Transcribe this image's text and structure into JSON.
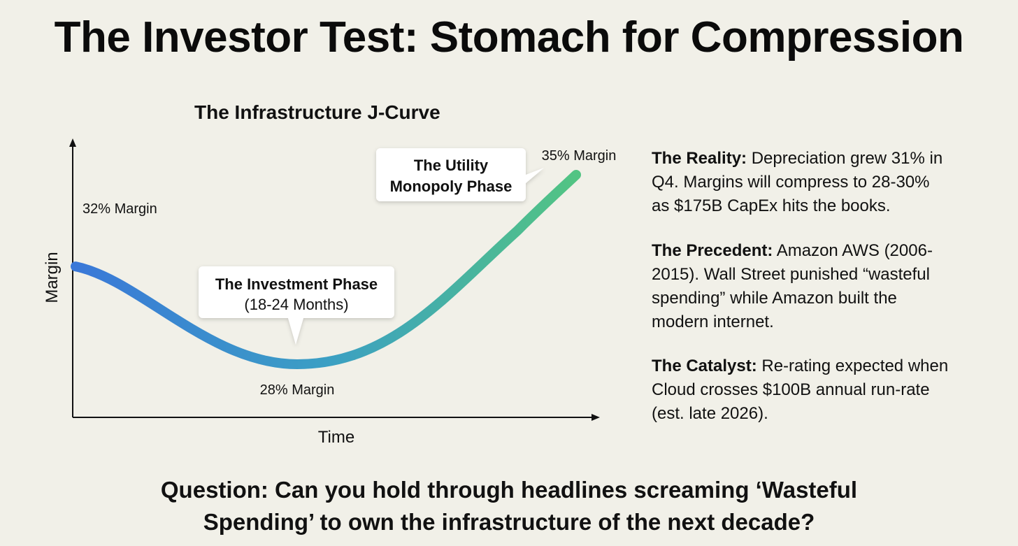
{
  "title": "The Investor Test: Stomach for Compression",
  "chart_data": {
    "type": "line",
    "title": "The Infrastructure J-Curve",
    "xlabel": "Time",
    "ylabel": "Margin",
    "series": [
      {
        "y": [
          32,
          28,
          35
        ]
      }
    ],
    "annotations": [
      {
        "label": "32% Margin"
      },
      {
        "label": "28% Margin"
      },
      {
        "label": "35% Margin"
      }
    ],
    "callouts": [
      {
        "lines": [
          "The Investment Phase",
          "(18-24 Months)"
        ]
      },
      {
        "lines": [
          "The Utility",
          "Monopoly Phase"
        ]
      }
    ],
    "colors": {
      "start": "#3a78d8",
      "mid": "#3b9fc4",
      "end": "#52c483"
    }
  },
  "side": [
    {
      "heading": "The Reality:",
      "lines": [
        "Depreciation grew 31% in",
        "Q4. Margins will compress to 28-30%",
        "as $175B CapEx hits the books."
      ]
    },
    {
      "heading": "The Precedent:",
      "lines": [
        "Amazon AWS (2006-",
        "2015). Wall Street punished “wasteful",
        "spending” while Amazon built the",
        "modern internet."
      ]
    },
    {
      "heading": "The Catalyst:",
      "lines": [
        "Re-rating expected when",
        "Cloud crosses $100B annual run-rate",
        "(est. late 2026)."
      ]
    }
  ],
  "question_lines": [
    "Question: Can you hold through headlines screaming ‘Wasteful",
    "Spending’ to own the infrastructure of the next decade?"
  ]
}
